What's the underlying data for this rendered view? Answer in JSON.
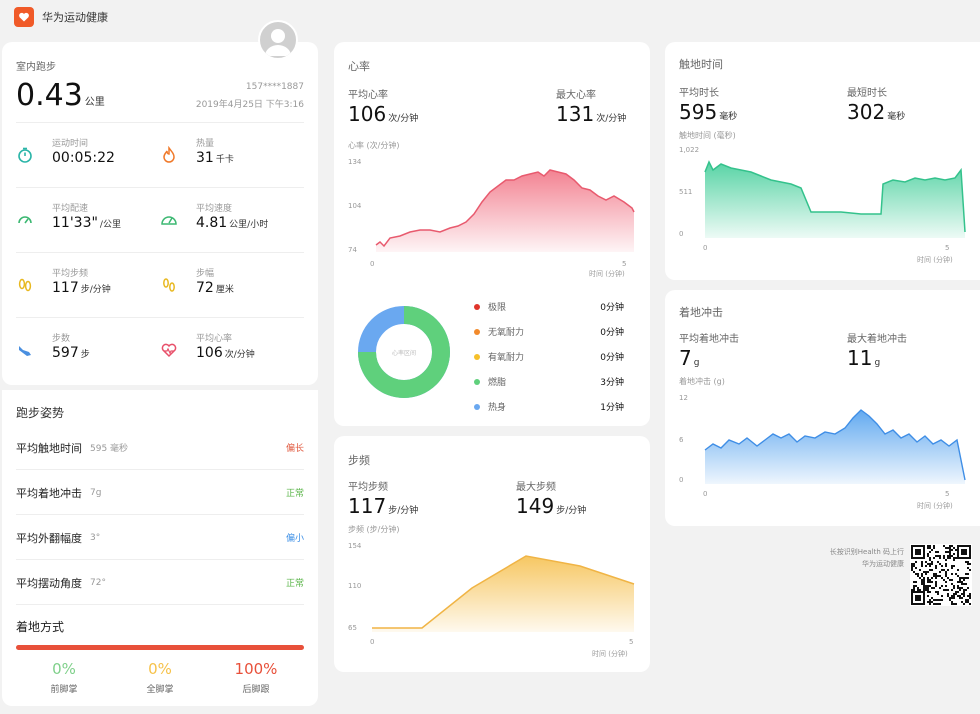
{
  "app": {
    "name": "华为运动健康",
    "brand_color": "#f05a28"
  },
  "profile": {
    "avatar_icon": "avatar-icon"
  },
  "summary": {
    "title": "室内跑步",
    "distance": "0.43",
    "distance_unit": "公里",
    "account": "157****1887",
    "datetime": "2019年4月25日 下午3:16",
    "metrics": [
      {
        "icon": "stopwatch-icon",
        "label": "运动时间",
        "value": "00:05:22",
        "unit": ""
      },
      {
        "icon": "flame-icon",
        "label": "热量",
        "value": "31",
        "unit": "千卡"
      },
      {
        "icon": "pace-icon",
        "label": "平均配速",
        "value": "11'33\"",
        "unit": "/公里"
      },
      {
        "icon": "speedometer-icon",
        "label": "平均速度",
        "value": "4.81",
        "unit": "公里/小时"
      },
      {
        "icon": "footprints-icon",
        "label": "平均步频",
        "value": "117",
        "unit": "步/分钟"
      },
      {
        "icon": "stride-icon",
        "label": "步幅",
        "value": "72",
        "unit": "厘米"
      },
      {
        "icon": "shoe-icon",
        "label": "步数",
        "value": "597",
        "unit": "步"
      },
      {
        "icon": "heart-pulse-icon",
        "label": "平均心率",
        "value": "106",
        "unit": "次/分钟"
      }
    ]
  },
  "posture": {
    "title": "跑步姿势",
    "rows": [
      {
        "label": "平均触地时间",
        "value": "595 毫秒",
        "status": "偏长",
        "status_color": "#e0563b"
      },
      {
        "label": "平均着地冲击",
        "value": "7g",
        "status": "正常",
        "status_color": "#5bb54a"
      },
      {
        "label": "平均外翻幅度",
        "value": "3°",
        "status": "偏小",
        "status_color": "#3a8ee6"
      },
      {
        "label": "平均摆动角度",
        "value": "72°",
        "status": "正常",
        "status_color": "#5bb54a"
      }
    ],
    "strike_title": "着地方式",
    "strike": [
      {
        "pct": "0%",
        "label": "前脚掌",
        "color": "#7fd08a"
      },
      {
        "pct": "0%",
        "label": "全脚掌",
        "color": "#f6c24a"
      },
      {
        "pct": "100%",
        "label": "后脚跟",
        "color": "#e8503a"
      }
    ]
  },
  "heart": {
    "title": "心率",
    "avg_label": "平均心率",
    "avg_value": "106",
    "avg_unit": "次/分钟",
    "max_label": "最大心率",
    "max_value": "131",
    "max_unit": "次/分钟",
    "axis_title": "心率 (次/分钟)",
    "y_ticks": [
      "134",
      "104",
      "74"
    ],
    "x_start": "0",
    "x_end": "5",
    "x_label": "时间 (分钟)",
    "color": "#f27c8c",
    "donut_center": "心率区间",
    "zones": [
      {
        "name": "极限",
        "value": "0分钟",
        "color": "#e0352b"
      },
      {
        "name": "无氧耐力",
        "value": "0分钟",
        "color": "#f28a2b"
      },
      {
        "name": "有氧耐力",
        "value": "0分钟",
        "color": "#f6c02a"
      },
      {
        "name": "燃脂",
        "value": "3分钟",
        "color": "#5fd07c"
      },
      {
        "name": "热身",
        "value": "1分钟",
        "color": "#6aa8f0"
      }
    ]
  },
  "cadence": {
    "title": "步频",
    "avg_label": "平均步频",
    "avg_value": "117",
    "avg_unit": "步/分钟",
    "max_label": "最大步频",
    "max_value": "149",
    "max_unit": "步/分钟",
    "axis_title": "步频 (步/分钟)",
    "y_ticks": [
      "154",
      "110",
      "65"
    ],
    "x_start": "0",
    "x_end": "5",
    "x_label": "时间 (分钟)",
    "color": "#f6c45a"
  },
  "contact": {
    "title": "触地时间",
    "avg_label": "平均时长",
    "avg_value": "595",
    "avg_unit": "毫秒",
    "min_label": "最短时长",
    "min_value": "302",
    "min_unit": "毫秒",
    "axis_title": "触地时间 (毫秒)",
    "y_ticks": [
      "1,022",
      "511",
      "0"
    ],
    "x_start": "0",
    "x_end": "5",
    "x_label": "时间 (分钟)",
    "color": "#4fd1a0"
  },
  "impact": {
    "title": "着地冲击",
    "avg_label": "平均着地冲击",
    "avg_value": "7",
    "avg_unit": "g",
    "max_label": "最大着地冲击",
    "max_value": "11",
    "max_unit": "g",
    "axis_title": "着地冲击 (g)",
    "y_ticks": [
      "12",
      "6",
      "0"
    ],
    "x_start": "0",
    "x_end": "5",
    "x_label": "时间 (分钟)",
    "color": "#5aa5ef"
  },
  "footer": {
    "line1": "长按识别Health 码上行",
    "line2": "华为运动健康"
  }
}
